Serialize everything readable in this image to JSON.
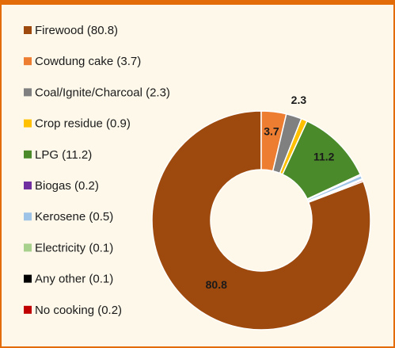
{
  "chart_data": {
    "type": "donut",
    "categories": [
      "Firewood (80.8)",
      "Cowdung cake (3.7)",
      "Coal/Ignite/Charcoal (2.3)",
      "Crop residue (0.9)",
      "LPG (11.2)",
      "Biogas (0.2)",
      "Kerosene (0.5)",
      "Electricity (0.1)",
      "Any other (0.1)",
      "No cooking (0.2)"
    ],
    "values": [
      80.8,
      3.7,
      2.3,
      0.9,
      11.2,
      0.2,
      0.5,
      0.1,
      0.1,
      0.2
    ],
    "value_labels": [
      "80.8",
      "3.7",
      "2.3",
      null,
      "11.2",
      null,
      null,
      null,
      null,
      null
    ],
    "colors": [
      "#9e4a0e",
      "#ed7d31",
      "#808080",
      "#ffc000",
      "#4b8a2b",
      "#7030a0",
      "#9dc3e6",
      "#a9d18e",
      "#000000",
      "#c00000"
    ],
    "legend": "left"
  }
}
